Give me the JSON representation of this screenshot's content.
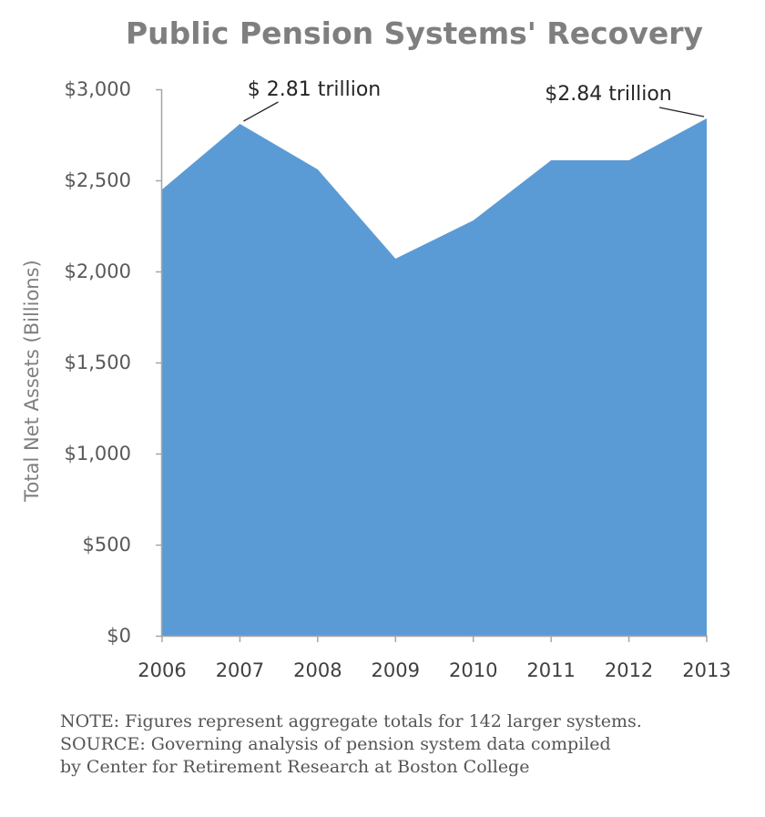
{
  "chart_data": {
    "type": "area",
    "title": "Public Pension Systems' Recovery",
    "ylabel": "Total Net Assets (Billions)",
    "xlabel": "",
    "categories": [
      "2006",
      "2007",
      "2008",
      "2009",
      "2010",
      "2011",
      "2012",
      "2013"
    ],
    "series": [
      {
        "name": "Total Net Assets",
        "values": [
          2450,
          2810,
          2560,
          2070,
          2280,
          2610,
          2610,
          2840
        ],
        "color": "#5b9bd5"
      }
    ],
    "ylim": [
      0,
      3000
    ],
    "yticks": [
      0,
      500,
      1000,
      1500,
      2000,
      2500,
      3000
    ],
    "ytick_labels": [
      "$0",
      "$500",
      "$1,000",
      "$1,500",
      "$2,000",
      "$2,500",
      "$3,000"
    ],
    "grid": false,
    "annotations": [
      {
        "text": "$ 2.81 trillion",
        "category": "2007",
        "value": 2810
      },
      {
        "text": "$2.84 trillion",
        "category": "2013",
        "value": 2840
      }
    ]
  },
  "notes": {
    "note": "NOTE: Figures represent aggregate totals for 142 larger systems.",
    "source_line1": "SOURCE: Governing analysis of pension system data compiled",
    "source_line2": "by Center for Retirement Research at Boston College"
  },
  "colors": {
    "area": "#5b9bd5",
    "axis": "#a6a6a6"
  }
}
